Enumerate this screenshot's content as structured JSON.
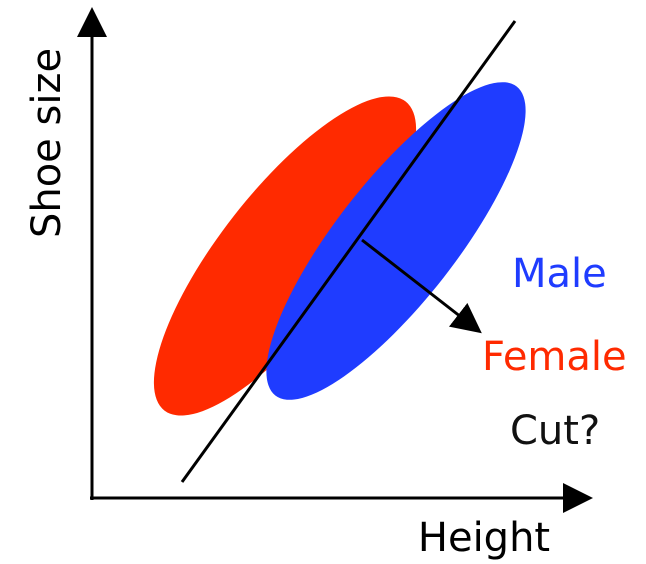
{
  "diagram": {
    "axes": {
      "x_label": "Height",
      "y_label": "Shoe size",
      "color": "#000000"
    },
    "legend": {
      "male": {
        "label": "Male",
        "color": "#1f3cff"
      },
      "female": {
        "label": "Female",
        "color": "#ff2a00"
      },
      "cut": {
        "label": "Cut?",
        "color": "#111111"
      }
    },
    "groups": {
      "female": {
        "color": "#ff2a00"
      },
      "male": {
        "color": "#1f3cff"
      }
    },
    "cut_line": {
      "color": "#000000"
    },
    "normal_arrow": {
      "color": "#000000"
    }
  }
}
